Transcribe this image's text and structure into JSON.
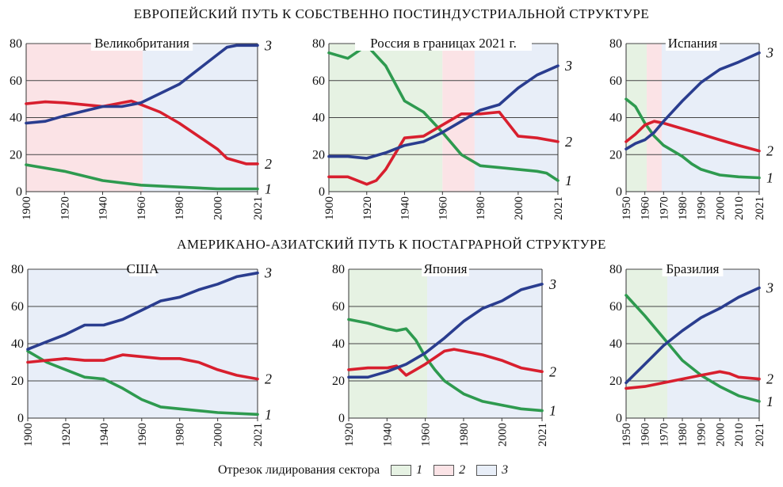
{
  "section_titles": {
    "top": "ЕВРОПЕЙСКИЙ ПУТЬ К СОБСТВЕННО ПОСТИНДУСТРИАЛЬНОЙ СТРУКТУРЕ",
    "bottom": "АМЕРИКАНО-АЗИАТСКИЙ ПУТЬ К ПОСТАГРАРНОЙ СТРУКТУРЕ"
  },
  "legend": {
    "label": "Отрезок лидирования сектора",
    "items": [
      {
        "label": "1",
        "color": "#e6f2e3"
      },
      {
        "label": "2",
        "color": "#fbe3e6"
      },
      {
        "label": "3",
        "color": "#e8eef8"
      }
    ]
  },
  "colors": {
    "line1": "#2e9a4f",
    "line2": "#d81f2e",
    "line3": "#2a3d8f",
    "fill1": "#e6f2e3",
    "fill2": "#fbe3e6",
    "fill3": "#e8eef8"
  },
  "chart_data": [
    {
      "type": "line",
      "title": "Великобритания",
      "xlim": [
        1900,
        2021
      ],
      "ylim": [
        0,
        80
      ],
      "xticks": [
        "1900",
        "1920",
        "1940",
        "1960",
        "1980",
        "2000",
        "2021"
      ],
      "yticks": [
        "0",
        "20",
        "40",
        "60",
        "80"
      ],
      "leading_segments": [
        {
          "sector": "2",
          "x0": 1900,
          "x1": 1961
        },
        {
          "sector": "3",
          "x0": 1961,
          "x1": 2021
        }
      ],
      "series": [
        {
          "name": "1",
          "x": [
            1900,
            1920,
            1940,
            1960,
            1980,
            2000,
            2010,
            2021
          ],
          "y": [
            14.5,
            11,
            6,
            3.5,
            2.5,
            1.5,
            1.5,
            1.5
          ]
        },
        {
          "name": "2",
          "x": [
            1900,
            1910,
            1920,
            1940,
            1955,
            1960,
            1970,
            1980,
            1990,
            2000,
            2005,
            2015,
            2021
          ],
          "y": [
            47.5,
            48.5,
            48,
            46,
            49,
            47,
            43,
            37,
            30,
            23,
            18,
            15,
            15
          ]
        },
        {
          "name": "3",
          "x": [
            1900,
            1910,
            1920,
            1940,
            1950,
            1960,
            1970,
            1980,
            1990,
            2000,
            2005,
            2010,
            2021
          ],
          "y": [
            37,
            38,
            41,
            46,
            46,
            48,
            53,
            58,
            66,
            74,
            78,
            79,
            79
          ]
        }
      ]
    },
    {
      "type": "line",
      "title": "Россия в границах 2021 г.",
      "xlim": [
        1900,
        2021
      ],
      "ylim": [
        0,
        80
      ],
      "xticks": [
        "1900",
        "1920",
        "1940",
        "1960",
        "1980",
        "2000",
        "2021"
      ],
      "yticks": [
        "0",
        "20",
        "40",
        "60",
        "80"
      ],
      "leading_segments": [
        {
          "sector": "1",
          "x0": 1900,
          "x1": 1960
        },
        {
          "sector": "2",
          "x0": 1960,
          "x1": 1977
        },
        {
          "sector": "3",
          "x0": 1977,
          "x1": 2021
        }
      ],
      "series": [
        {
          "name": "1",
          "x": [
            1900,
            1910,
            1920,
            1930,
            1940,
            1950,
            1960,
            1970,
            1980,
            1990,
            2000,
            2010,
            2015,
            2021
          ],
          "y": [
            75,
            72,
            79,
            68,
            49,
            43,
            32,
            20,
            14,
            13,
            12,
            11,
            10,
            6
          ]
        },
        {
          "name": "2",
          "x": [
            1900,
            1910,
            1920,
            1925,
            1930,
            1940,
            1950,
            1960,
            1970,
            1980,
            1990,
            2000,
            2010,
            2021
          ],
          "y": [
            8,
            8,
            4,
            6,
            12,
            29,
            30,
            36,
            42,
            42,
            43,
            30,
            29,
            27
          ]
        },
        {
          "name": "3",
          "x": [
            1900,
            1910,
            1920,
            1930,
            1940,
            1950,
            1960,
            1970,
            1980,
            1990,
            2000,
            2010,
            2021
          ],
          "y": [
            19,
            19,
            18,
            21,
            25,
            27,
            32,
            38,
            44,
            47,
            56,
            63,
            68
          ]
        }
      ]
    },
    {
      "type": "line",
      "title": "Испания",
      "xlim": [
        1950,
        2021
      ],
      "ylim": [
        0,
        80
      ],
      "xticks": [
        "1950",
        "1960",
        "1970",
        "1980",
        "1990",
        "2000",
        "2010",
        "2021"
      ],
      "yticks": [
        "0",
        "20",
        "40",
        "60",
        "80"
      ],
      "leading_segments": [
        {
          "sector": "1",
          "x0": 1950,
          "x1": 1961
        },
        {
          "sector": "2",
          "x0": 1961,
          "x1": 1969
        },
        {
          "sector": "3",
          "x0": 1969,
          "x1": 2021
        }
      ],
      "series": [
        {
          "name": "1",
          "x": [
            1950,
            1955,
            1960,
            1965,
            1970,
            1975,
            1980,
            1985,
            1990,
            2000,
            2010,
            2021
          ],
          "y": [
            50,
            46,
            37,
            30,
            25,
            22,
            19,
            15,
            12,
            9,
            8,
            7.5
          ]
        },
        {
          "name": "2",
          "x": [
            1950,
            1955,
            1960,
            1965,
            1970,
            1980,
            1990,
            2000,
            2010,
            2021
          ],
          "y": [
            27,
            31,
            36,
            38,
            37,
            34,
            31,
            28,
            25,
            22
          ]
        },
        {
          "name": "3",
          "x": [
            1950,
            1955,
            1960,
            1965,
            1970,
            1980,
            1990,
            2000,
            2010,
            2021
          ],
          "y": [
            23,
            26,
            28,
            32,
            38,
            49,
            59,
            66,
            70,
            75
          ]
        }
      ]
    },
    {
      "type": "line",
      "title": "США",
      "xlim": [
        1900,
        2021
      ],
      "ylim": [
        0,
        80
      ],
      "xticks": [
        "1900",
        "1920",
        "1940",
        "1960",
        "1980",
        "2000",
        "2021"
      ],
      "yticks": [
        "0",
        "20",
        "40",
        "60",
        "80"
      ],
      "leading_segments": [
        {
          "sector": "3",
          "x0": 1900,
          "x1": 2021
        }
      ],
      "series": [
        {
          "name": "1",
          "x": [
            1900,
            1910,
            1920,
            1930,
            1940,
            1950,
            1960,
            1970,
            1980,
            2000,
            2021
          ],
          "y": [
            36,
            30,
            26,
            22,
            21,
            16,
            10,
            6,
            5,
            3,
            2
          ]
        },
        {
          "name": "2",
          "x": [
            1900,
            1910,
            1920,
            1930,
            1940,
            1950,
            1960,
            1970,
            1980,
            1990,
            2000,
            2010,
            2021
          ],
          "y": [
            30,
            31,
            32,
            31,
            31,
            34,
            33,
            32,
            32,
            30,
            26,
            23,
            21
          ]
        },
        {
          "name": "3",
          "x": [
            1900,
            1910,
            1920,
            1930,
            1940,
            1950,
            1960,
            1970,
            1980,
            1990,
            2000,
            2010,
            2021
          ],
          "y": [
            37,
            41,
            45,
            50,
            50,
            53,
            58,
            63,
            65,
            69,
            72,
            76,
            78
          ]
        }
      ]
    },
    {
      "type": "line",
      "title": "Япония",
      "xlim": [
        1920,
        2021
      ],
      "ylim": [
        0,
        80
      ],
      "xticks": [
        "1920",
        "1940",
        "1960",
        "1980",
        "2000",
        "2021"
      ],
      "yticks": [
        "0",
        "20",
        "40",
        "60",
        "80"
      ],
      "leading_segments": [
        {
          "sector": "1",
          "x0": 1920,
          "x1": 1961
        },
        {
          "sector": "3",
          "x0": 1961,
          "x1": 2021
        }
      ],
      "series": [
        {
          "name": "1",
          "x": [
            1920,
            1930,
            1940,
            1945,
            1950,
            1955,
            1960,
            1965,
            1970,
            1980,
            1990,
            2000,
            2010,
            2021
          ],
          "y": [
            53,
            51,
            48,
            47,
            48,
            42,
            33,
            26,
            20,
            13,
            9,
            7,
            5,
            4
          ]
        },
        {
          "name": "2",
          "x": [
            1920,
            1930,
            1940,
            1945,
            1950,
            1955,
            1960,
            1970,
            1975,
            1980,
            1990,
            2000,
            2010,
            2021
          ],
          "y": [
            26,
            27,
            27,
            28,
            23,
            26,
            29,
            36,
            37,
            36,
            34,
            31,
            27,
            25
          ]
        },
        {
          "name": "3",
          "x": [
            1920,
            1930,
            1940,
            1950,
            1960,
            1970,
            1980,
            1990,
            2000,
            2010,
            2021
          ],
          "y": [
            22,
            22,
            25,
            29,
            35,
            43,
            52,
            59,
            63,
            69,
            72
          ]
        }
      ]
    },
    {
      "type": "line",
      "title": "Бразилия",
      "xlim": [
        1950,
        2021
      ],
      "ylim": [
        0,
        80
      ],
      "xticks": [
        "1950",
        "1960",
        "1970",
        "1980",
        "1990",
        "2000",
        "2010",
        "2021"
      ],
      "yticks": [
        "0",
        "20",
        "40",
        "60",
        "80"
      ],
      "leading_segments": [
        {
          "sector": "1",
          "x0": 1950,
          "x1": 1972
        },
        {
          "sector": "3",
          "x0": 1972,
          "x1": 2021
        }
      ],
      "series": [
        {
          "name": "1",
          "x": [
            1950,
            1960,
            1970,
            1980,
            1990,
            2000,
            2010,
            2021
          ],
          "y": [
            66,
            55,
            43,
            31,
            23,
            17,
            12,
            9
          ]
        },
        {
          "name": "2",
          "x": [
            1950,
            1960,
            1970,
            1980,
            1990,
            2000,
            2005,
            2010,
            2021
          ],
          "y": [
            16,
            17,
            19,
            21,
            23,
            25,
            24,
            22,
            21
          ]
        },
        {
          "name": "3",
          "x": [
            1950,
            1960,
            1970,
            1980,
            1990,
            2000,
            2010,
            2021
          ],
          "y": [
            19,
            29,
            39,
            47,
            54,
            59,
            65,
            70
          ]
        }
      ]
    }
  ]
}
